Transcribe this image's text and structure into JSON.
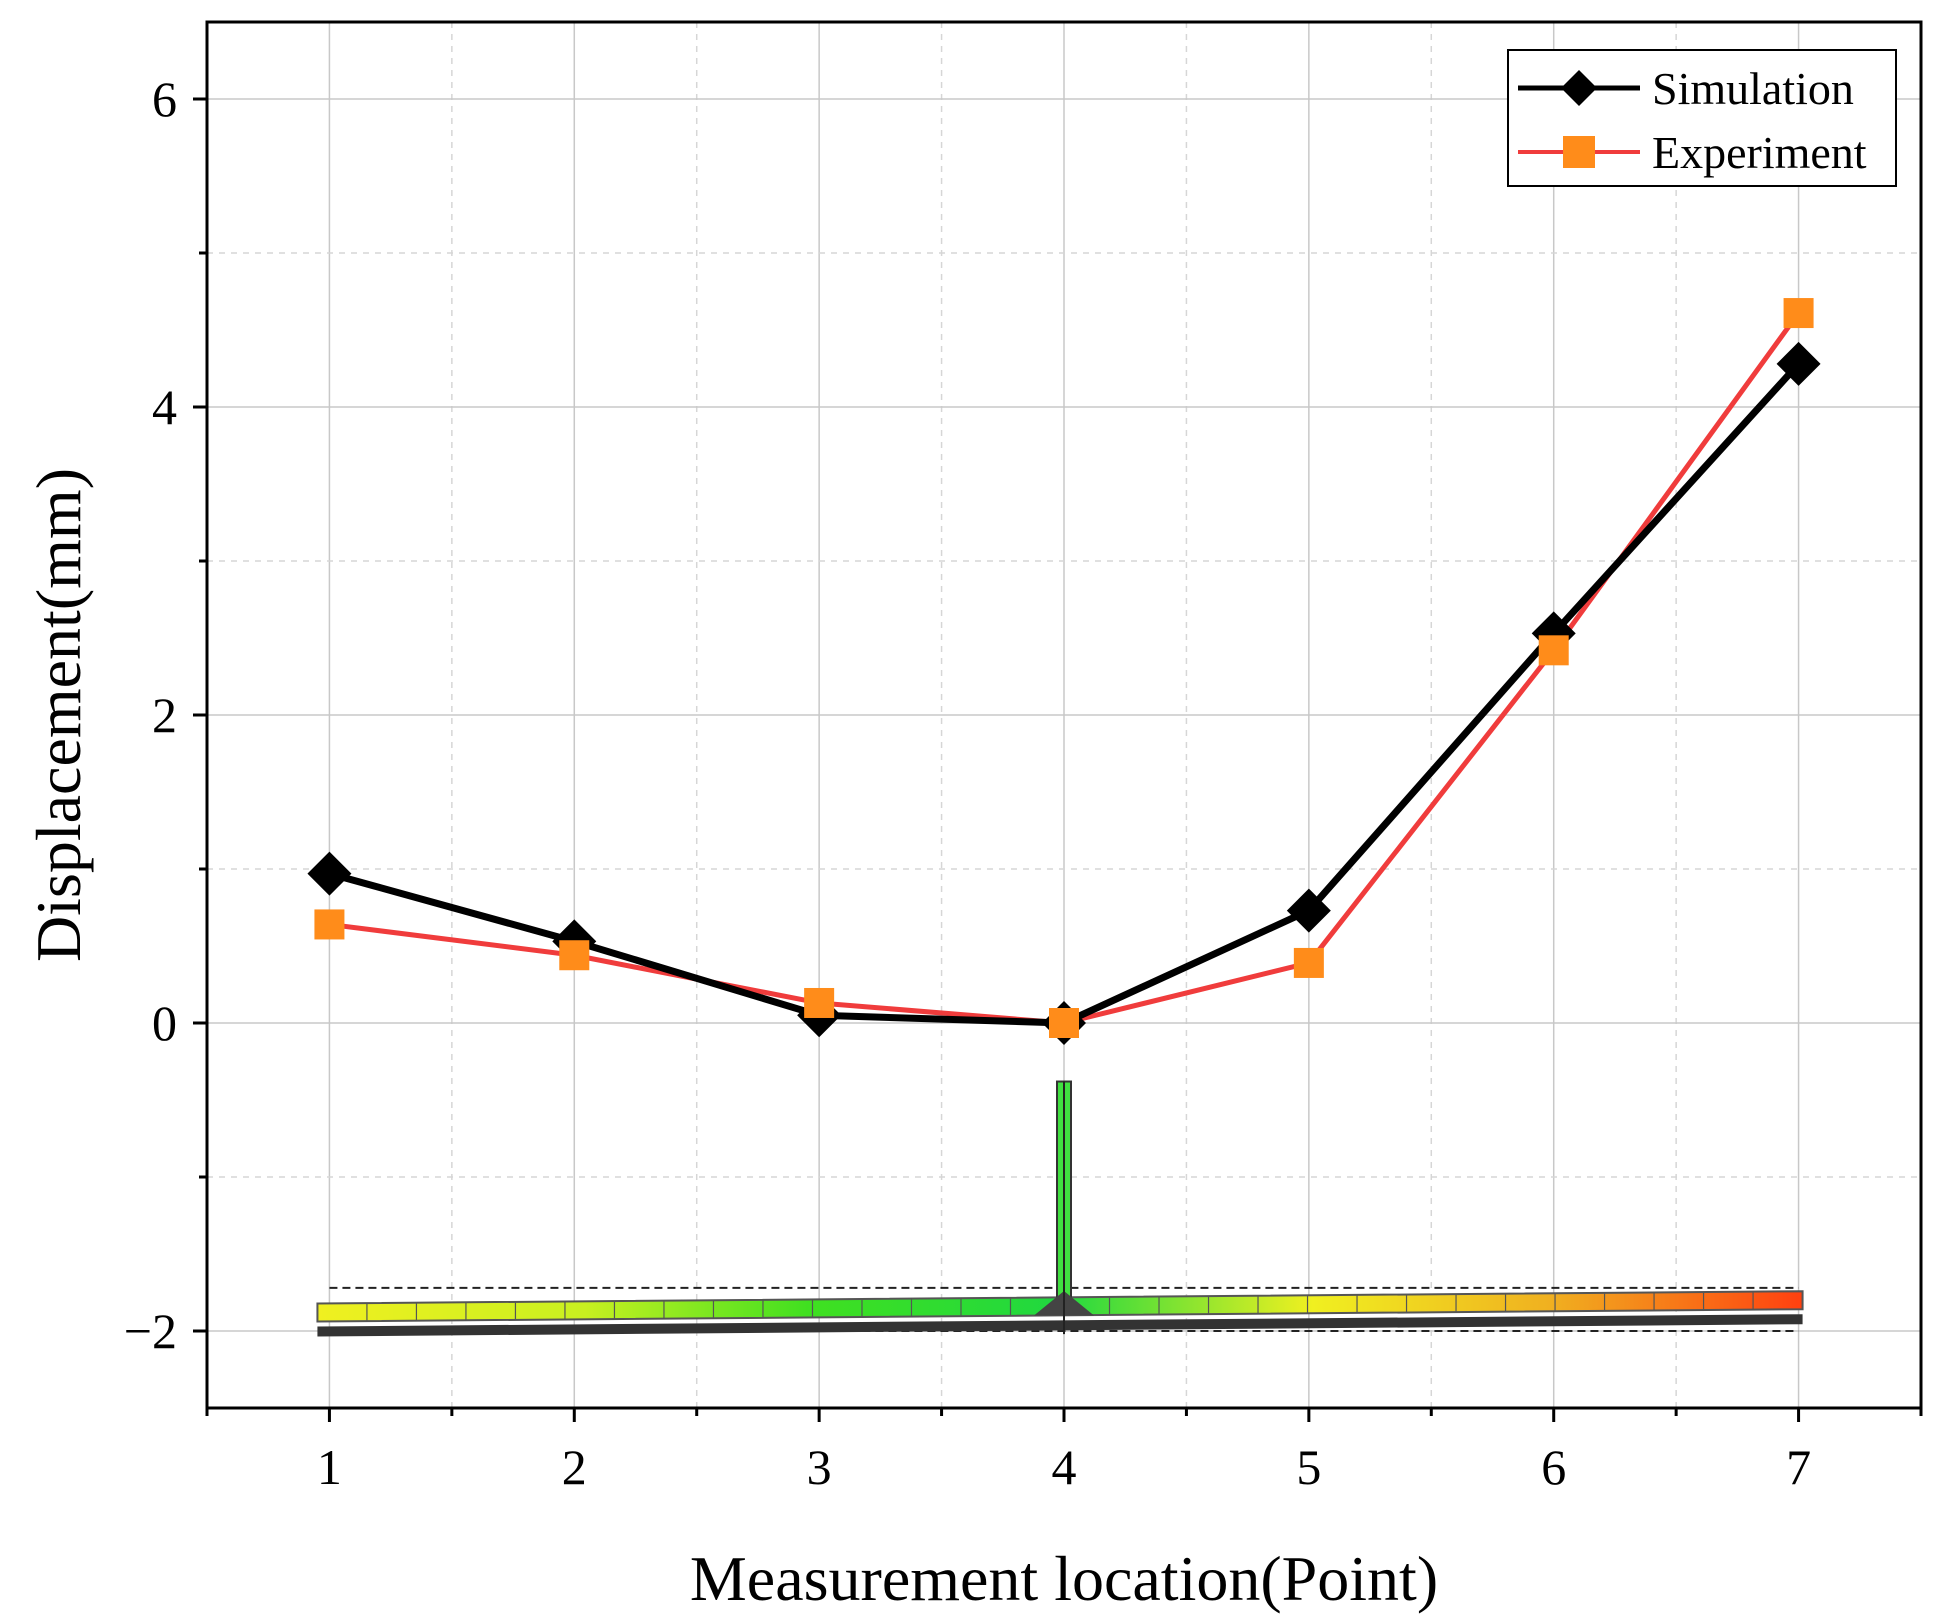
{
  "chart_data": {
    "type": "line",
    "title": "",
    "xlabel": "Measurement location(Point)",
    "ylabel": "Displacement(mm)",
    "x": [
      1,
      2,
      3,
      4,
      5,
      6,
      7
    ],
    "xlim": [
      0.5,
      7.5
    ],
    "ylim": [
      -2.5,
      6.5
    ],
    "xticks": [
      1,
      2,
      3,
      4,
      5,
      6,
      7
    ],
    "xtick_labels": [
      "1",
      "2",
      "3",
      "4",
      "5",
      "6",
      "7"
    ],
    "yticks": [
      -2,
      0,
      2,
      4,
      6
    ],
    "ytick_labels": [
      "−2",
      "0",
      "2",
      "4",
      "6"
    ],
    "grid": true,
    "legend_position": "top-right",
    "series": [
      {
        "name": "Simulation",
        "color": "#000000",
        "marker": "diamond",
        "values": [
          0.97,
          0.53,
          0.05,
          0.0,
          0.73,
          2.53,
          4.28
        ]
      },
      {
        "name": "Experiment",
        "color": "#f03c3c",
        "marker_color": "#ff8c1a",
        "marker": "square",
        "values": [
          0.64,
          0.44,
          0.13,
          0.0,
          0.39,
          2.42,
          4.61
        ]
      }
    ],
    "inset": {
      "description": "deformed beam contour overlay",
      "colors": [
        "#f0f020",
        "#c8f020",
        "#40e020",
        "#20d840",
        "#f0f020",
        "#f0b020",
        "#ff4010"
      ]
    }
  }
}
